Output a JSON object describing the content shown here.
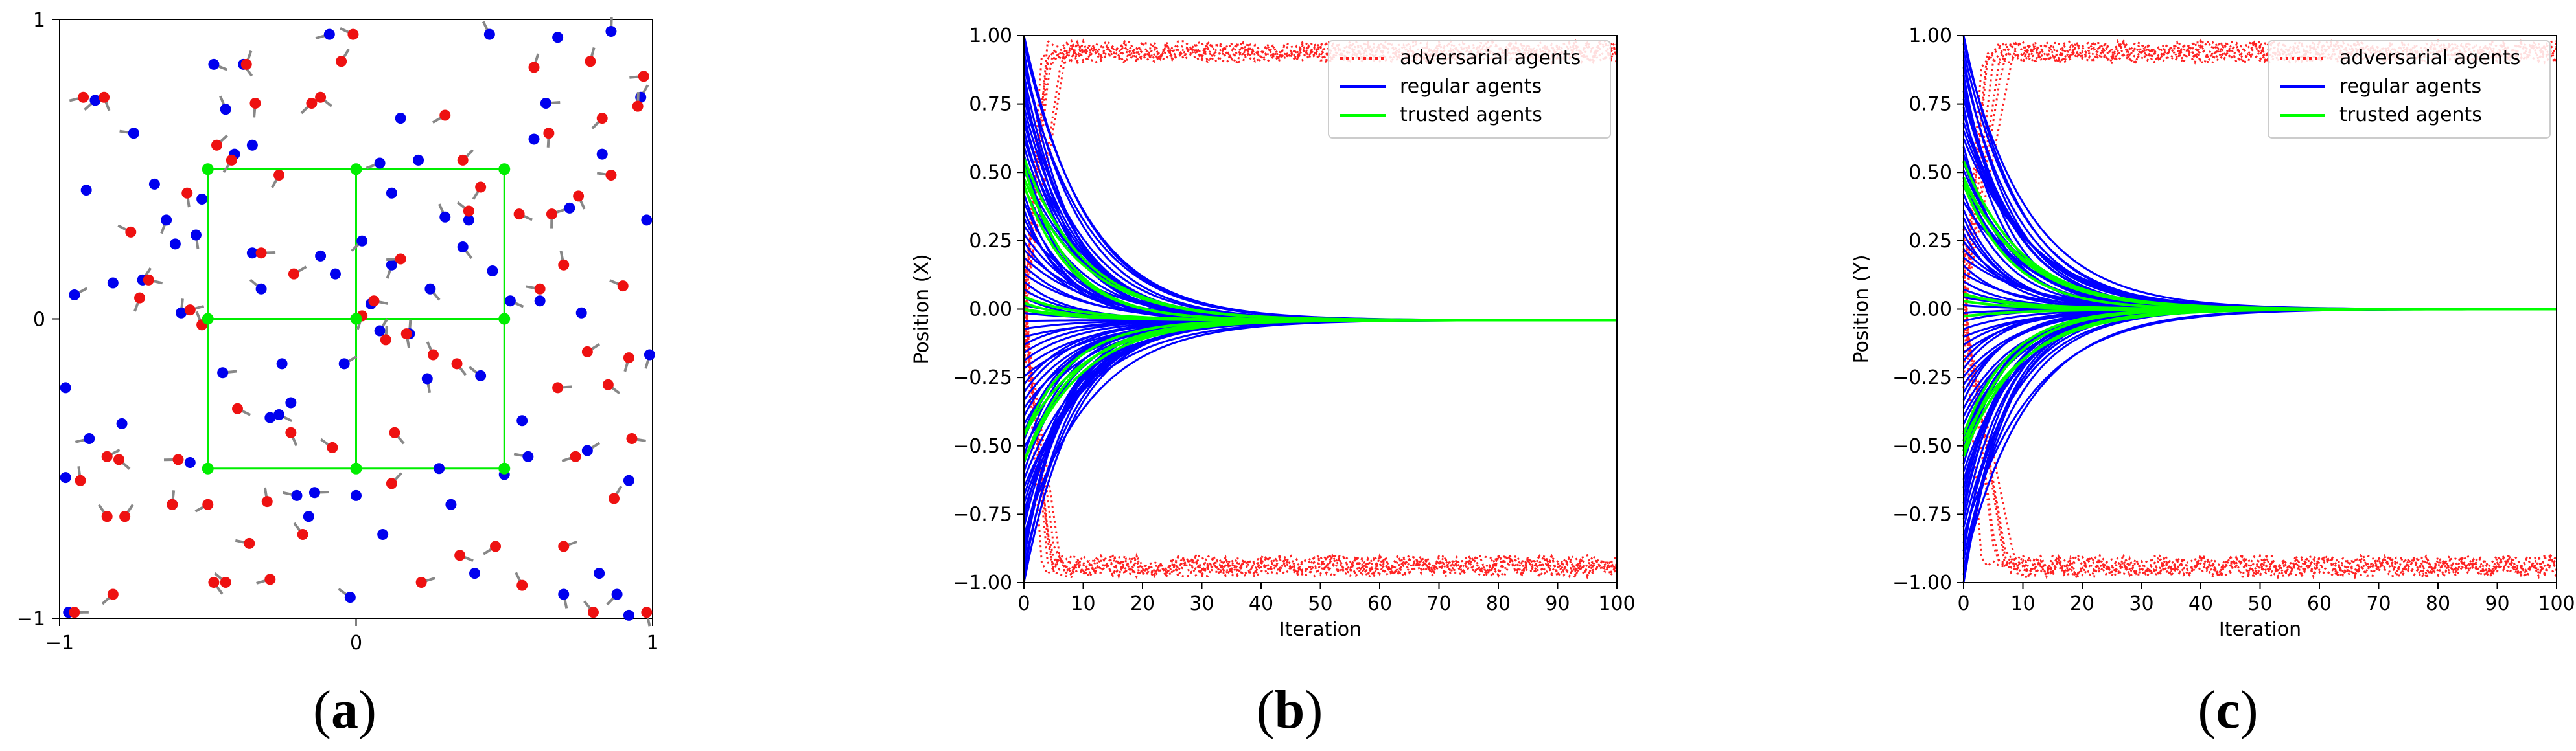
{
  "captions": {
    "a": "a",
    "b": "b",
    "c": "c"
  },
  "chart_data": [
    {
      "type": "scatter",
      "panel": "a",
      "title": "",
      "xlabel": "",
      "ylabel": "",
      "xlim": [
        -1,
        1
      ],
      "ylim": [
        -1,
        1
      ],
      "xticks": [
        -1,
        0,
        1
      ],
      "yticks": [
        -1,
        0,
        1
      ],
      "legend": null,
      "trusted_grid": {
        "color": "#00ee00",
        "x": [
          -0.5,
          0,
          0.5
        ],
        "y": [
          -0.5,
          0,
          0.5
        ]
      },
      "series": [
        {
          "role": "regular",
          "color": "#0000ee",
          "marker": "circle",
          "points": [
            [
              -0.97,
              -0.98
            ],
            [
              -0.98,
              -0.53
            ],
            [
              -0.9,
              -0.4
            ],
            [
              -0.98,
              -0.23
            ],
            [
              -0.95,
              0.08
            ],
            [
              -0.91,
              0.43
            ],
            [
              -0.88,
              0.73
            ],
            [
              -0.79,
              -0.35
            ],
            [
              -0.72,
              0.13
            ],
            [
              -0.68,
              0.45
            ],
            [
              -0.64,
              0.33
            ],
            [
              -0.61,
              0.25
            ],
            [
              -0.59,
              0.02
            ],
            [
              -0.56,
              -0.48
            ],
            [
              -0.54,
              0.28
            ],
            [
              -0.52,
              0.4
            ],
            [
              -0.44,
              0.7
            ],
            [
              -0.41,
              0.55
            ],
            [
              -0.38,
              0.85
            ],
            [
              -0.35,
              0.22
            ],
            [
              -0.32,
              0.1
            ],
            [
              -0.29,
              -0.33
            ],
            [
              -0.26,
              -0.32
            ],
            [
              -0.22,
              -0.28
            ],
            [
              -0.2,
              -0.59
            ],
            [
              -0.16,
              -0.66
            ],
            [
              -0.14,
              -0.58
            ],
            [
              -0.12,
              0.21
            ],
            [
              -0.09,
              0.95
            ],
            [
              -0.07,
              0.15
            ],
            [
              -0.04,
              -0.15
            ],
            [
              0.0,
              -0.59
            ],
            [
              0.02,
              0.26
            ],
            [
              0.05,
              0.05
            ],
            [
              0.08,
              -0.04
            ],
            [
              0.09,
              -0.72
            ],
            [
              0.12,
              0.18
            ],
            [
              0.15,
              0.67
            ],
            [
              0.18,
              -0.05
            ],
            [
              0.21,
              0.53
            ],
            [
              0.24,
              -0.2
            ],
            [
              0.28,
              -0.5
            ],
            [
              0.3,
              0.34
            ],
            [
              0.32,
              -0.62
            ],
            [
              0.36,
              0.24
            ],
            [
              0.38,
              0.33
            ],
            [
              0.42,
              -0.19
            ],
            [
              0.46,
              0.16
            ],
            [
              0.52,
              0.06
            ],
            [
              0.56,
              -0.34
            ],
            [
              0.58,
              -0.46
            ],
            [
              0.62,
              0.06
            ],
            [
              0.64,
              0.72
            ],
            [
              0.68,
              0.94
            ],
            [
              0.72,
              0.37
            ],
            [
              0.76,
              0.02
            ],
            [
              0.78,
              -0.44
            ],
            [
              0.82,
              -0.85
            ],
            [
              0.88,
              -0.92
            ],
            [
              0.92,
              -0.99
            ],
            [
              0.96,
              0.74
            ],
            [
              0.98,
              0.33
            ],
            [
              0.99,
              -0.12
            ],
            [
              0.92,
              -0.54
            ],
            [
              0.86,
              0.96
            ],
            [
              0.83,
              0.55
            ],
            [
              0.7,
              -0.92
            ],
            [
              0.6,
              0.6
            ],
            [
              0.45,
              0.95
            ],
            [
              0.4,
              -0.85
            ],
            [
              0.25,
              0.1
            ],
            [
              0.12,
              0.42
            ],
            [
              -0.02,
              -0.93
            ],
            [
              -0.25,
              -0.15
            ],
            [
              -0.48,
              0.85
            ],
            [
              -0.62,
              -0.62
            ],
            [
              -0.75,
              0.62
            ],
            [
              -0.82,
              0.12
            ],
            [
              -0.45,
              -0.18
            ],
            [
              0.5,
              -0.52
            ],
            [
              0.08,
              0.52
            ],
            [
              -0.35,
              0.58
            ]
          ]
        },
        {
          "role": "adversarial",
          "color": "#ee1111",
          "marker": "circle",
          "points": [
            [
              -0.95,
              -0.98
            ],
            [
              -0.93,
              -0.54
            ],
            [
              -0.92,
              0.74
            ],
            [
              -0.85,
              0.74
            ],
            [
              -0.84,
              -0.46
            ],
            [
              -0.84,
              -0.66
            ],
            [
              -0.82,
              -0.92
            ],
            [
              -0.8,
              -0.47
            ],
            [
              -0.78,
              -0.66
            ],
            [
              -0.76,
              0.29
            ],
            [
              -0.73,
              0.07
            ],
            [
              -0.7,
              0.13
            ],
            [
              -0.62,
              -0.62
            ],
            [
              -0.6,
              -0.47
            ],
            [
              -0.57,
              0.42
            ],
            [
              -0.56,
              0.03
            ],
            [
              -0.52,
              -0.02
            ],
            [
              -0.5,
              -0.62
            ],
            [
              -0.48,
              -0.88
            ],
            [
              -0.47,
              0.58
            ],
            [
              -0.44,
              -0.88
            ],
            [
              -0.42,
              0.53
            ],
            [
              -0.4,
              -0.3
            ],
            [
              -0.37,
              0.85
            ],
            [
              -0.36,
              -0.75
            ],
            [
              -0.34,
              0.72
            ],
            [
              -0.32,
              0.22
            ],
            [
              -0.3,
              -0.61
            ],
            [
              -0.29,
              -0.87
            ],
            [
              -0.22,
              -0.38
            ],
            [
              -0.21,
              0.15
            ],
            [
              -0.18,
              -0.72
            ],
            [
              -0.15,
              0.72
            ],
            [
              -0.12,
              0.74
            ],
            [
              -0.05,
              0.86
            ],
            [
              -0.01,
              0.95
            ],
            [
              0.02,
              0.01
            ],
            [
              0.06,
              0.06
            ],
            [
              0.1,
              -0.07
            ],
            [
              0.15,
              0.2
            ],
            [
              0.17,
              -0.05
            ],
            [
              0.22,
              -0.88
            ],
            [
              0.26,
              -0.12
            ],
            [
              0.3,
              0.68
            ],
            [
              0.34,
              -0.15
            ],
            [
              0.36,
              0.53
            ],
            [
              0.38,
              0.36
            ],
            [
              0.42,
              0.44
            ],
            [
              0.55,
              0.35
            ],
            [
              0.6,
              0.84
            ],
            [
              0.62,
              0.1
            ],
            [
              0.65,
              0.62
            ],
            [
              0.68,
              -0.23
            ],
            [
              0.7,
              0.18
            ],
            [
              0.74,
              -0.46
            ],
            [
              0.75,
              0.41
            ],
            [
              0.78,
              -0.11
            ],
            [
              0.8,
              -0.98
            ],
            [
              0.83,
              0.67
            ],
            [
              0.85,
              -0.22
            ],
            [
              0.87,
              -0.6
            ],
            [
              0.9,
              0.11
            ],
            [
              0.92,
              -0.13
            ],
            [
              0.93,
              -0.4
            ],
            [
              0.95,
              0.71
            ],
            [
              0.97,
              0.81
            ],
            [
              0.98,
              -0.98
            ],
            [
              0.7,
              -0.76
            ],
            [
              0.56,
              -0.89
            ],
            [
              0.47,
              -0.76
            ],
            [
              0.13,
              -0.38
            ],
            [
              0.12,
              -0.55
            ],
            [
              -0.08,
              -0.43
            ],
            [
              -0.26,
              0.48
            ],
            [
              0.35,
              -0.79
            ],
            [
              0.79,
              0.86
            ],
            [
              0.86,
              0.48
            ],
            [
              0.66,
              0.35
            ]
          ]
        }
      ]
    },
    {
      "type": "line",
      "panel": "b",
      "title": "",
      "xlabel": "Iteration",
      "ylabel": "Position (X)",
      "xlim": [
        0,
        100
      ],
      "ylim": [
        -1,
        1
      ],
      "xticks": [
        0,
        10,
        20,
        30,
        40,
        50,
        60,
        70,
        80,
        90,
        100
      ],
      "yticks": [
        1.0,
        0.75,
        0.5,
        0.25,
        0.0,
        -0.25,
        -0.5,
        -0.75,
        -1.0
      ],
      "yticklabels": [
        "1.00",
        "0.75",
        "0.50",
        "0.25",
        "0.00",
        "−0.25",
        "−0.50",
        "−0.75",
        "−1.00"
      ],
      "legend": {
        "position": "top-right",
        "entries": [
          {
            "label": "adversarial agents",
            "color": "#ff2222",
            "style": "dotted"
          },
          {
            "label": "regular agents",
            "color": "#0000ff",
            "style": "solid"
          },
          {
            "label": "trusted agents",
            "color": "#00ff00",
            "style": "solid"
          }
        ]
      },
      "series": [
        {
          "name": "adversarial agents",
          "color": "#ff2222",
          "style": "dotted",
          "description": "start near 0 in the first few iterations, then saturate and oscillate near +0.95 and −0.95 through iteration 100",
          "upper_band": [
            0.9,
            0.98
          ],
          "lower_band": [
            -0.98,
            -0.9
          ]
        },
        {
          "name": "regular agents",
          "color": "#0000ff",
          "style": "solid",
          "initial_range": [
            -1.0,
            1.0
          ],
          "consensus": -0.04,
          "converged_by_iteration": 45
        },
        {
          "name": "trusted agents",
          "color": "#00ff00",
          "style": "solid",
          "initial_values": [
            0.5,
            0.0,
            -0.5
          ],
          "consensus": -0.04,
          "converged_by_iteration": 45
        }
      ]
    },
    {
      "type": "line",
      "panel": "c",
      "title": "",
      "xlabel": "Iteration",
      "ylabel": "Position (Y)",
      "xlim": [
        0,
        100
      ],
      "ylim": [
        -1,
        1
      ],
      "xticks": [
        0,
        10,
        20,
        30,
        40,
        50,
        60,
        70,
        80,
        90,
        100
      ],
      "yticks": [
        1.0,
        0.75,
        0.5,
        0.25,
        0.0,
        -0.25,
        -0.5,
        -0.75,
        -1.0
      ],
      "yticklabels": [
        "1.00",
        "0.75",
        "0.50",
        "0.25",
        "0.00",
        "−0.25",
        "−0.50",
        "−0.75",
        "−1.00"
      ],
      "legend": {
        "position": "top-right",
        "entries": [
          {
            "label": "adversarial agents",
            "color": "#ff2222",
            "style": "dotted"
          },
          {
            "label": "regular agents",
            "color": "#0000ff",
            "style": "solid"
          },
          {
            "label": "trusted agents",
            "color": "#00ff00",
            "style": "solid"
          }
        ]
      },
      "series": [
        {
          "name": "adversarial agents",
          "color": "#ff2222",
          "style": "dotted",
          "description": "start near 0 in the first few iterations, then saturate and oscillate near +0.95 and −0.95 through iteration 100",
          "upper_band": [
            0.9,
            0.98
          ],
          "lower_band": [
            -0.98,
            -0.9
          ]
        },
        {
          "name": "regular agents",
          "color": "#0000ff",
          "style": "solid",
          "initial_range": [
            -1.0,
            1.0
          ],
          "consensus": 0.0,
          "converged_by_iteration": 45
        },
        {
          "name": "trusted agents",
          "color": "#00ff00",
          "style": "solid",
          "initial_values": [
            0.5,
            0.0,
            -0.5
          ],
          "consensus": 0.0,
          "converged_by_iteration": 45
        }
      ]
    }
  ]
}
